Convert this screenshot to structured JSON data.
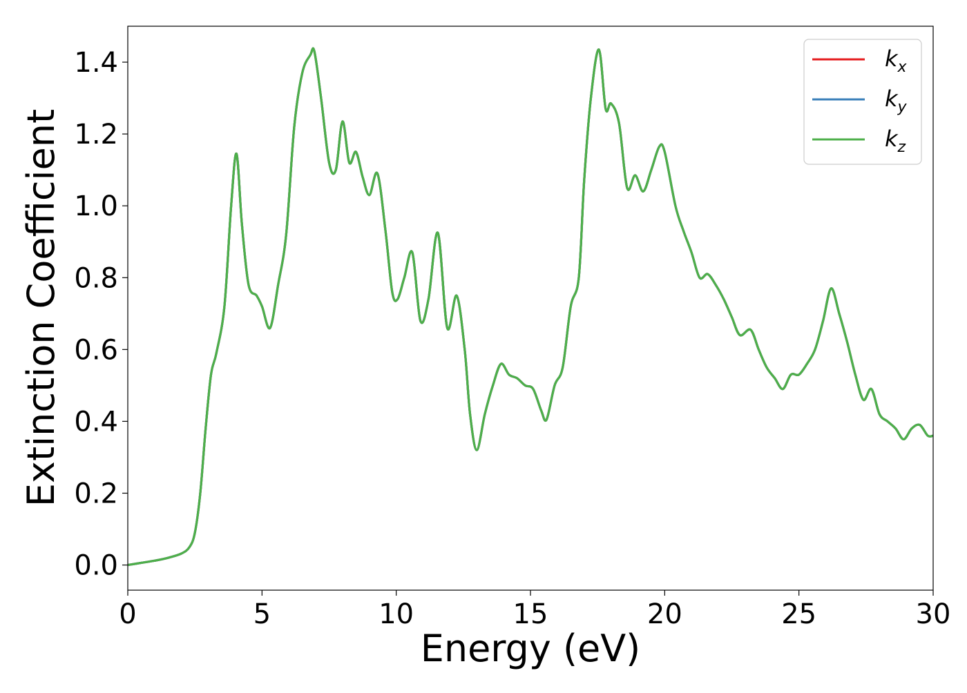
{
  "chart_data": {
    "type": "line",
    "title": "",
    "xlabel": "Energy (eV)",
    "ylabel": "Extinction Coefficient",
    "xlim": [
      0,
      30
    ],
    "ylim": [
      -0.07,
      1.5
    ],
    "x_ticks": [
      "0",
      "5",
      "10",
      "15",
      "20",
      "25",
      "30"
    ],
    "y_ticks": [
      "0.0",
      "0.2",
      "0.4",
      "0.6",
      "0.8",
      "1.0",
      "1.2",
      "1.4"
    ],
    "grid": false,
    "legend_position": "top-right",
    "series": [
      {
        "name": "k",
        "subscript": "x",
        "color": "#e41a1c"
      },
      {
        "name": "k",
        "subscript": "y",
        "color": "#377eb8"
      },
      {
        "name": "k",
        "subscript": "z",
        "color": "#4daf4a"
      }
    ],
    "x": [
      0,
      0.5,
      1.0,
      1.5,
      2.0,
      2.3,
      2.5,
      2.7,
      2.9,
      3.1,
      3.3,
      3.6,
      3.85,
      4.05,
      4.25,
      4.5,
      4.8,
      5.0,
      5.3,
      5.6,
      5.9,
      6.2,
      6.5,
      6.8,
      6.95,
      7.2,
      7.5,
      7.75,
      8.0,
      8.25,
      8.5,
      8.75,
      9.0,
      9.3,
      9.6,
      9.85,
      10.05,
      10.3,
      10.6,
      10.9,
      11.2,
      11.55,
      11.9,
      12.25,
      12.55,
      12.75,
      13.0,
      13.3,
      13.6,
      13.9,
      14.2,
      14.5,
      14.8,
      15.1,
      15.4,
      15.6,
      15.9,
      16.2,
      16.5,
      16.8,
      17.0,
      17.25,
      17.55,
      17.8,
      18.0,
      18.3,
      18.6,
      18.9,
      19.2,
      19.5,
      19.8,
      20.0,
      20.4,
      20.7,
      21.0,
      21.3,
      21.6,
      21.9,
      22.2,
      22.5,
      22.8,
      23.2,
      23.5,
      23.8,
      24.1,
      24.4,
      24.7,
      25.0,
      25.3,
      25.6,
      25.9,
      26.2,
      26.5,
      26.8,
      27.1,
      27.4,
      27.7,
      28.0,
      28.3,
      28.6,
      28.9,
      29.2,
      29.5,
      29.8,
      30.0
    ],
    "y": [
      0.0,
      0.006,
      0.012,
      0.02,
      0.032,
      0.05,
      0.09,
      0.2,
      0.38,
      0.53,
      0.59,
      0.72,
      1.0,
      1.145,
      0.95,
      0.78,
      0.75,
      0.72,
      0.66,
      0.78,
      0.92,
      1.22,
      1.37,
      1.42,
      1.43,
      1.3,
      1.12,
      1.1,
      1.235,
      1.12,
      1.15,
      1.08,
      1.03,
      1.09,
      0.93,
      0.76,
      0.74,
      0.8,
      0.87,
      0.68,
      0.74,
      0.925,
      0.66,
      0.75,
      0.6,
      0.42,
      0.32,
      0.42,
      0.5,
      0.56,
      0.53,
      0.52,
      0.5,
      0.49,
      0.43,
      0.405,
      0.5,
      0.55,
      0.72,
      0.8,
      1.07,
      1.3,
      1.435,
      1.27,
      1.285,
      1.23,
      1.05,
      1.085,
      1.04,
      1.1,
      1.165,
      1.15,
      1.0,
      0.93,
      0.87,
      0.8,
      0.81,
      0.78,
      0.74,
      0.69,
      0.64,
      0.655,
      0.6,
      0.55,
      0.52,
      0.49,
      0.53,
      0.53,
      0.56,
      0.6,
      0.68,
      0.77,
      0.7,
      0.62,
      0.53,
      0.46,
      0.49,
      0.42,
      0.4,
      0.38,
      0.35,
      0.38,
      0.39,
      0.36,
      0.36
    ]
  }
}
